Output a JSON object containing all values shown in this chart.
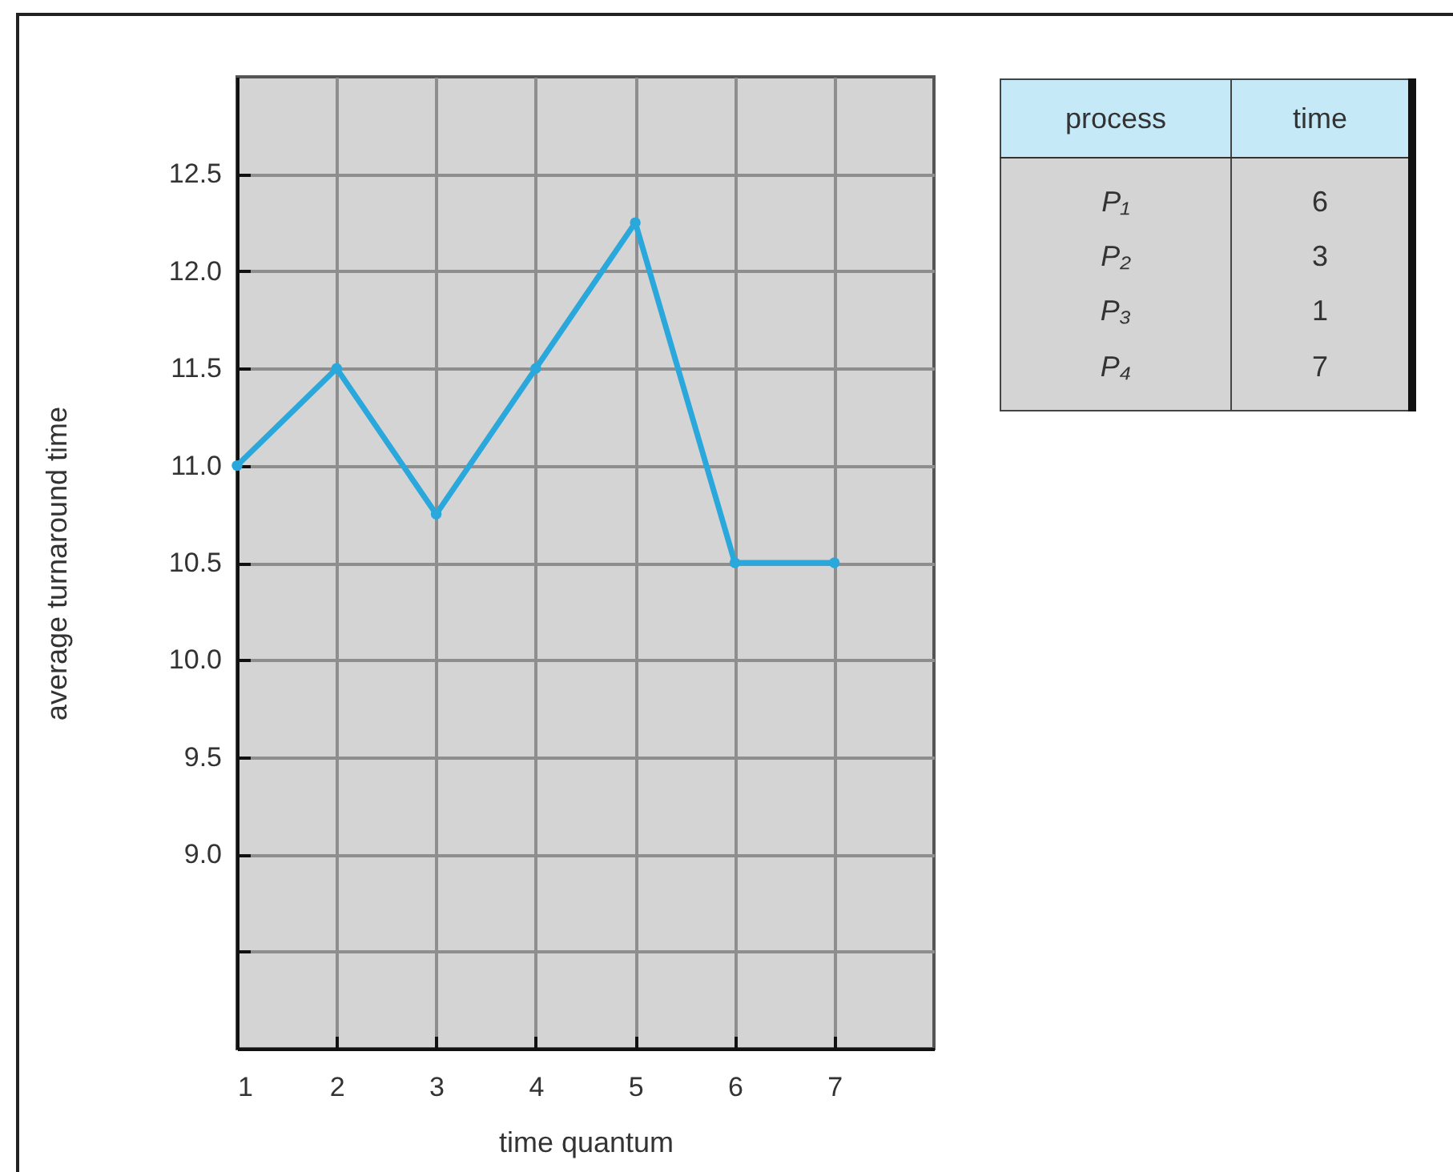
{
  "chart_data": [
    {
      "type": "line",
      "xlabel": "time quantum",
      "ylabel": "average turnaround time",
      "x": [
        1,
        2,
        3,
        4,
        5,
        6,
        7
      ],
      "series": [
        {
          "color": "#2aa8dc",
          "values": [
            11.0,
            11.5,
            10.75,
            11.5,
            12.25,
            10.5,
            10.5
          ]
        }
      ],
      "xlim": [
        1,
        8
      ],
      "xticks": [
        1,
        2,
        3,
        4,
        5,
        6,
        7
      ],
      "ylim": [
        8,
        13
      ],
      "yticks": [
        {
          "value": 8.5,
          "label": null
        },
        {
          "value": 9,
          "label": "9.0"
        },
        9.5,
        {
          "value": 10,
          "label": "10.0"
        },
        10.5,
        {
          "value": 11,
          "label": "11.0"
        },
        11.5,
        {
          "value": 12,
          "label": "12.0"
        },
        12.5
      ],
      "grid": true,
      "marker": "circle",
      "line_style": "solid"
    },
    {
      "type": "other",
      "xlabel": "process",
      "ylabel": "time",
      "categories": [
        "P₁",
        "P₂",
        "P₃",
        "P₄"
      ],
      "values": [
        6,
        3,
        1,
        7
      ],
      "data_labels": true
    }
  ]
}
